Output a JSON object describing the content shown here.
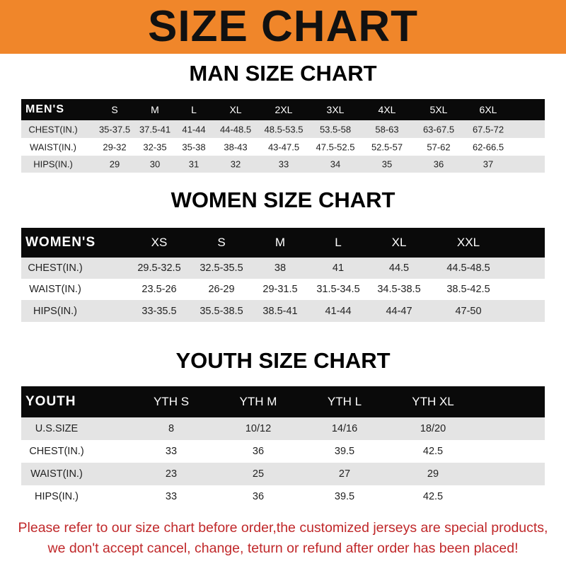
{
  "title": "SIZE CHART",
  "men": {
    "title": "MAN SIZE CHART",
    "header": "MEN'S",
    "sizes": [
      "S",
      "M",
      "L",
      "XL",
      "2XL",
      "3XL",
      "4XL",
      "5XL",
      "6XL"
    ],
    "rows": [
      {
        "label": "CHEST(IN.)",
        "values": [
          "35-37.5",
          "37.5-41",
          "41-44",
          "44-48.5",
          "48.5-53.5",
          "53.5-58",
          "58-63",
          "63-67.5",
          "67.5-72"
        ]
      },
      {
        "label": "WAIST(IN.)",
        "values": [
          "29-32",
          "32-35",
          "35-38",
          "38-43",
          "43-47.5",
          "47.5-52.5",
          "52.5-57",
          "57-62",
          "62-66.5"
        ]
      },
      {
        "label": "HIPS(IN.)",
        "values": [
          "29",
          "30",
          "31",
          "32",
          "33",
          "34",
          "35",
          "36",
          "37"
        ]
      }
    ]
  },
  "women": {
    "title": "WOMEN SIZE CHART",
    "header": "WOMEN'S",
    "sizes": [
      "XS",
      "S",
      "M",
      "L",
      "XL",
      "XXL"
    ],
    "rows": [
      {
        "label": "CHEST(IN.)",
        "values": [
          "29.5-32.5",
          "32.5-35.5",
          "38",
          "41",
          "44.5",
          "44.5-48.5"
        ]
      },
      {
        "label": "WAIST(IN.)",
        "values": [
          "23.5-26",
          "26-29",
          "29-31.5",
          "31.5-34.5",
          "34.5-38.5",
          "38.5-42.5"
        ]
      },
      {
        "label": "HIPS(IN.)",
        "values": [
          "33-35.5",
          "35.5-38.5",
          "38.5-41",
          "41-44",
          "44-47",
          "47-50"
        ]
      }
    ]
  },
  "youth": {
    "title": "YOUTH SIZE CHART",
    "header": "YOUTH",
    "sizes": [
      "YTH S",
      "YTH M",
      "YTH L",
      "YTH XL"
    ],
    "rows": [
      {
        "label": "U.S.SIZE",
        "values": [
          "8",
          "10/12",
          "14/16",
          "18/20"
        ]
      },
      {
        "label": "CHEST(IN.)",
        "values": [
          "33",
          "36",
          "39.5",
          "42.5"
        ]
      },
      {
        "label": "WAIST(IN.)",
        "values": [
          "23",
          "25",
          "27",
          "29"
        ]
      },
      {
        "label": "HIPS(IN.)",
        "values": [
          "33",
          "36",
          "39.5",
          "42.5"
        ]
      }
    ]
  },
  "notice": [
    "Please refer to our size chart before order,the customized jerseys are special products,",
    "we don't accept cancel, change, teturn or refund after order has been placed!"
  ],
  "colors": {
    "banner": "#f0862a",
    "header_row": "#0a0a0a",
    "notice": "#c0282a"
  }
}
